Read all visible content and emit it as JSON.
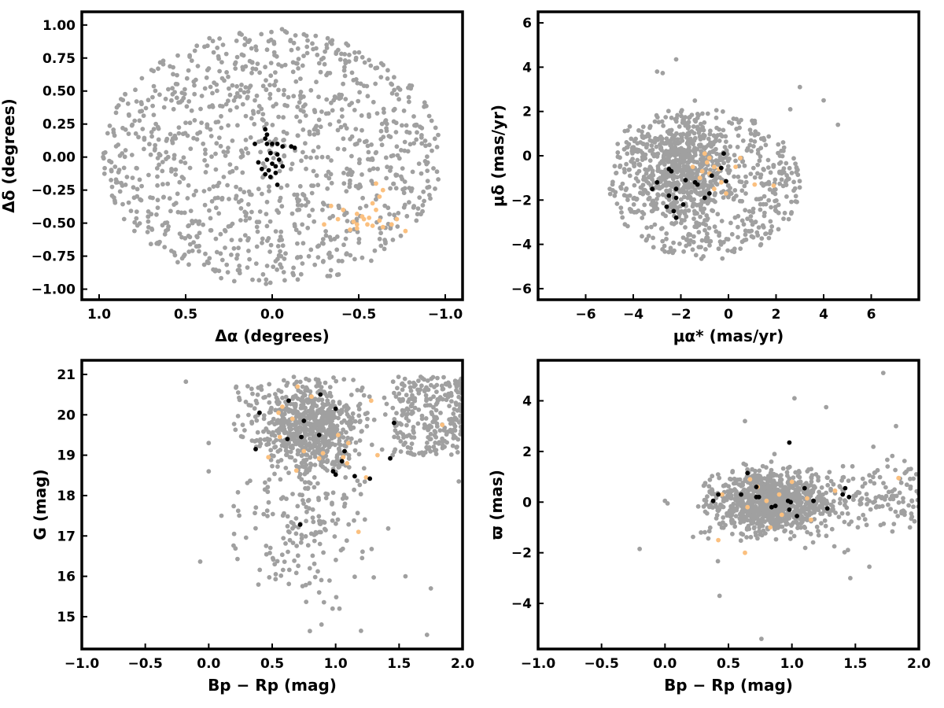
{
  "colors": {
    "background_stars": "#a0a0a0",
    "black_group": "#000000",
    "orange_group": "#fbc07f"
  },
  "chart_data": [
    {
      "type": "scatter",
      "id": "sky",
      "xlabel": "Δα (degrees)",
      "ylabel": "Δδ (degrees)",
      "xlim": [
        1.1,
        -1.1
      ],
      "ylim": [
        -1.08,
        1.1
      ],
      "x_inverted": true,
      "xticks": [
        1.0,
        0.5,
        0.0,
        -0.5,
        -1.0
      ],
      "xtick_labels": [
        "1.0",
        "0.5",
        "0.0",
        "−0.5",
        "−1.0"
      ],
      "yticks": [
        1.0,
        0.75,
        0.5,
        0.25,
        0.0,
        -0.25,
        -0.5,
        -0.75,
        -1.0
      ],
      "ytick_labels": [
        "1.00",
        "0.75",
        "0.50",
        "0.25",
        "0.00",
        "−0.25",
        "−0.50",
        "−0.75",
        "−1.00"
      ],
      "grid": false,
      "background_field": {
        "shape": "disk",
        "center": [
          0.0,
          0.0
        ],
        "radius": 1.0,
        "n_stars": 1100
      },
      "series": [
        {
          "group": "black",
          "points": [
            [
              0.04,
              0.21
            ],
            [
              0.03,
              0.17
            ],
            [
              0.04,
              0.14
            ],
            [
              0.03,
              0.1
            ],
            [
              0.0,
              0.1
            ],
            [
              -0.03,
              0.1
            ],
            [
              0.1,
              0.1
            ],
            [
              -0.06,
              0.08
            ],
            [
              -0.11,
              0.08
            ],
            [
              -0.13,
              0.07
            ],
            [
              0.01,
              0.03
            ],
            [
              -0.03,
              0.02
            ],
            [
              0.03,
              -0.02
            ],
            [
              -0.04,
              -0.02
            ],
            [
              0.08,
              -0.04
            ],
            [
              0.0,
              -0.05
            ],
            [
              -0.02,
              -0.07
            ],
            [
              -0.06,
              -0.07
            ],
            [
              0.06,
              -0.09
            ],
            [
              0.02,
              -0.1
            ],
            [
              -0.02,
              -0.12
            ],
            [
              0.01,
              -0.15
            ],
            [
              0.04,
              -0.13
            ],
            [
              -0.03,
              -0.21
            ]
          ]
        },
        {
          "group": "orange",
          "points": [
            [
              -0.6,
              -0.2
            ],
            [
              -0.64,
              -0.25
            ],
            [
              -0.62,
              -0.3
            ],
            [
              -0.58,
              -0.35
            ],
            [
              -0.34,
              -0.37
            ],
            [
              -0.41,
              -0.4
            ],
            [
              -0.6,
              -0.4
            ],
            [
              -0.49,
              -0.43
            ],
            [
              -0.52,
              -0.45
            ],
            [
              -0.56,
              -0.46
            ],
            [
              -0.53,
              -0.47
            ],
            [
              -0.38,
              -0.47
            ],
            [
              -0.72,
              -0.47
            ],
            [
              -0.62,
              -0.48
            ],
            [
              -0.47,
              -0.49
            ],
            [
              -0.3,
              -0.51
            ],
            [
              -0.49,
              -0.51
            ],
            [
              -0.55,
              -0.51
            ],
            [
              -0.69,
              -0.51
            ],
            [
              -0.58,
              -0.52
            ],
            [
              -0.64,
              -0.53
            ],
            [
              -0.49,
              -0.54
            ],
            [
              -0.45,
              -0.55
            ],
            [
              -0.77,
              -0.56
            ]
          ]
        }
      ]
    },
    {
      "type": "scatter",
      "id": "proper-motion",
      "xlabel": "μα* (mas/yr)",
      "ylabel": "μδ (mas/yr)",
      "xlim": [
        -8.0,
        8.0
      ],
      "ylim": [
        -6.5,
        6.5
      ],
      "xticks": [
        -6,
        -4,
        -2,
        0,
        2,
        4,
        6
      ],
      "xtick_labels": [
        "−6",
        "−4",
        "−2",
        "0",
        "2",
        "4",
        "6"
      ],
      "yticks": [
        6,
        4,
        2,
        0,
        -2,
        -4,
        -6
      ],
      "ytick_labels": [
        "6",
        "4",
        "2",
        "0",
        "−2",
        "−4",
        "−6"
      ],
      "grid": false,
      "background_field": {
        "shape": "clump",
        "center": [
          -1.0,
          -1.3
        ],
        "radius": 3.5,
        "dense_core": [
          -1.9,
          -0.4
        ],
        "n_stars": 1100
      },
      "series": [
        {
          "group": "black",
          "points": [
            [
              -0.2,
              0.1
            ],
            [
              -0.3,
              -0.55
            ],
            [
              -2.5,
              -0.6
            ],
            [
              -2.4,
              -0.7
            ],
            [
              -0.7,
              -0.9
            ],
            [
              -1.8,
              -1.1
            ],
            [
              -0.1,
              -1.15
            ],
            [
              -1.4,
              -1.2
            ],
            [
              -1.3,
              -1.3
            ],
            [
              -3.0,
              -1.2
            ],
            [
              -3.2,
              -1.5
            ],
            [
              -2.2,
              -1.5
            ],
            [
              -0.8,
              -1.7
            ],
            [
              -2.5,
              -1.8
            ],
            [
              -1.0,
              -1.9
            ],
            [
              -2.2,
              -1.9
            ],
            [
              -1.9,
              -2.2
            ],
            [
              -2.6,
              -2.3
            ],
            [
              -2.3,
              -2.5
            ],
            [
              -2.2,
              -2.8
            ]
          ]
        },
        {
          "group": "orange",
          "points": [
            [
              -1.0,
              0.1
            ],
            [
              -0.8,
              -0.1
            ],
            [
              0.5,
              -0.1
            ],
            [
              -0.9,
              -0.3
            ],
            [
              -1.5,
              -0.5
            ],
            [
              -0.6,
              -0.5
            ],
            [
              0.3,
              -0.5
            ],
            [
              -0.4,
              -0.6
            ],
            [
              -1.1,
              -0.7
            ],
            [
              -0.8,
              -0.8
            ],
            [
              -1.2,
              -1.0
            ],
            [
              -0.3,
              -1.2
            ],
            [
              1.1,
              -1.3
            ],
            [
              1.9,
              -1.35
            ],
            [
              -0.6,
              -1.5
            ],
            [
              -0.1,
              -1.7
            ]
          ]
        }
      ]
    },
    {
      "type": "scatter",
      "id": "cmd",
      "xlabel": "Bp − Rp (mag)",
      "ylabel": "G (mag)",
      "xlim": [
        -1.0,
        2.0
      ],
      "ylim": [
        14.2,
        21.35
      ],
      "y_inverted": true,
      "xticks": [
        -1.0,
        -0.5,
        0.0,
        0.5,
        1.0,
        1.5,
        2.0
      ],
      "xtick_labels": [
        "−1.0",
        "−0.5",
        "0.0",
        "0.5",
        "1.0",
        "1.5",
        "2.0"
      ],
      "yticks": [
        21,
        20,
        19,
        18,
        17,
        16,
        15
      ],
      "ytick_labels": [
        "21",
        "20",
        "19",
        "18",
        "17",
        "16",
        "15"
      ],
      "grid": false,
      "background_field": {
        "shape": "cmd",
        "n_stars": 1150
      },
      "series": [
        {
          "group": "black",
          "points": [
            [
              0.63,
              20.35
            ],
            [
              0.88,
              20.5
            ],
            [
              0.4,
              20.05
            ],
            [
              1.0,
              20.15
            ],
            [
              0.75,
              19.85
            ],
            [
              1.46,
              19.8
            ],
            [
              0.87,
              19.5
            ],
            [
              0.73,
              19.45
            ],
            [
              0.62,
              19.4
            ],
            [
              0.37,
              19.15
            ],
            [
              1.07,
              19.1
            ],
            [
              1.05,
              18.85
            ],
            [
              1.43,
              18.92
            ],
            [
              0.98,
              18.6
            ],
            [
              1.0,
              18.52
            ],
            [
              1.15,
              18.48
            ],
            [
              1.27,
              18.42
            ],
            [
              0.72,
              17.28
            ]
          ]
        },
        {
          "group": "orange",
          "points": [
            [
              0.7,
              20.7
            ],
            [
              0.81,
              20.45
            ],
            [
              0.58,
              20.2
            ],
            [
              1.28,
              20.35
            ],
            [
              0.66,
              19.9
            ],
            [
              1.02,
              19.5
            ],
            [
              0.56,
              19.45
            ],
            [
              1.1,
              19.3
            ],
            [
              0.75,
              19.1
            ],
            [
              0.9,
              19.05
            ],
            [
              0.47,
              18.95
            ],
            [
              1.06,
              18.95
            ],
            [
              0.87,
              18.92
            ],
            [
              1.09,
              18.8
            ],
            [
              0.69,
              18.62
            ],
            [
              1.24,
              18.45
            ],
            [
              1.18,
              17.1
            ],
            [
              1.84,
              19.75
            ],
            [
              1.33,
              19.0
            ],
            [
              0.55,
              20.05
            ]
          ]
        }
      ]
    },
    {
      "type": "scatter",
      "id": "parallax",
      "xlabel": "Bp − Rp (mag)",
      "ylabel": "ϖ (mas)",
      "xlim": [
        -1.0,
        2.0
      ],
      "ylim": [
        -5.8,
        5.6
      ],
      "xticks": [
        -1.0,
        -0.5,
        0.0,
        0.5,
        1.0,
        1.5,
        2.0
      ],
      "xtick_labels": [
        "−1.0",
        "−0.5",
        "0.0",
        "0.5",
        "1.0",
        "1.5",
        "2.0"
      ],
      "yticks": [
        4,
        2,
        0,
        -2,
        -4
      ],
      "ytick_labels": [
        "4",
        "2",
        "0",
        "−2",
        "−4"
      ],
      "grid": false,
      "background_field": {
        "shape": "band",
        "n_stars": 1150
      },
      "series": [
        {
          "group": "black",
          "points": [
            [
              0.98,
              2.35
            ],
            [
              0.65,
              1.15
            ],
            [
              0.6,
              0.3
            ],
            [
              0.42,
              0.3
            ],
            [
              0.38,
              0.05
            ],
            [
              0.72,
              0.6
            ],
            [
              1.1,
              0.55
            ],
            [
              1.42,
              0.55
            ],
            [
              1.4,
              0.3
            ],
            [
              1.45,
              0.2
            ],
            [
              0.74,
              0.2
            ],
            [
              0.72,
              0.2
            ],
            [
              0.97,
              0.05
            ],
            [
              0.99,
              0.0
            ],
            [
              1.17,
              0.05
            ],
            [
              0.87,
              -0.15
            ],
            [
              0.84,
              -0.2
            ],
            [
              0.98,
              -0.3
            ],
            [
              1.28,
              -0.25
            ],
            [
              1.04,
              -0.55
            ]
          ]
        },
        {
          "group": "orange",
          "points": [
            [
              0.67,
              0.9
            ],
            [
              0.73,
              0.6
            ],
            [
              0.45,
              0.3
            ],
            [
              0.8,
              0.05
            ],
            [
              0.9,
              0.3
            ],
            [
              0.65,
              -0.2
            ],
            [
              0.92,
              -0.5
            ],
            [
              1.15,
              -0.7
            ],
            [
              0.83,
              -1.0
            ],
            [
              0.42,
              -1.5
            ],
            [
              0.63,
              -2.0
            ],
            [
              1.84,
              0.95
            ],
            [
              1.0,
              0.8
            ],
            [
              1.12,
              0.15
            ],
            [
              1.34,
              0.45
            ]
          ]
        }
      ]
    }
  ]
}
